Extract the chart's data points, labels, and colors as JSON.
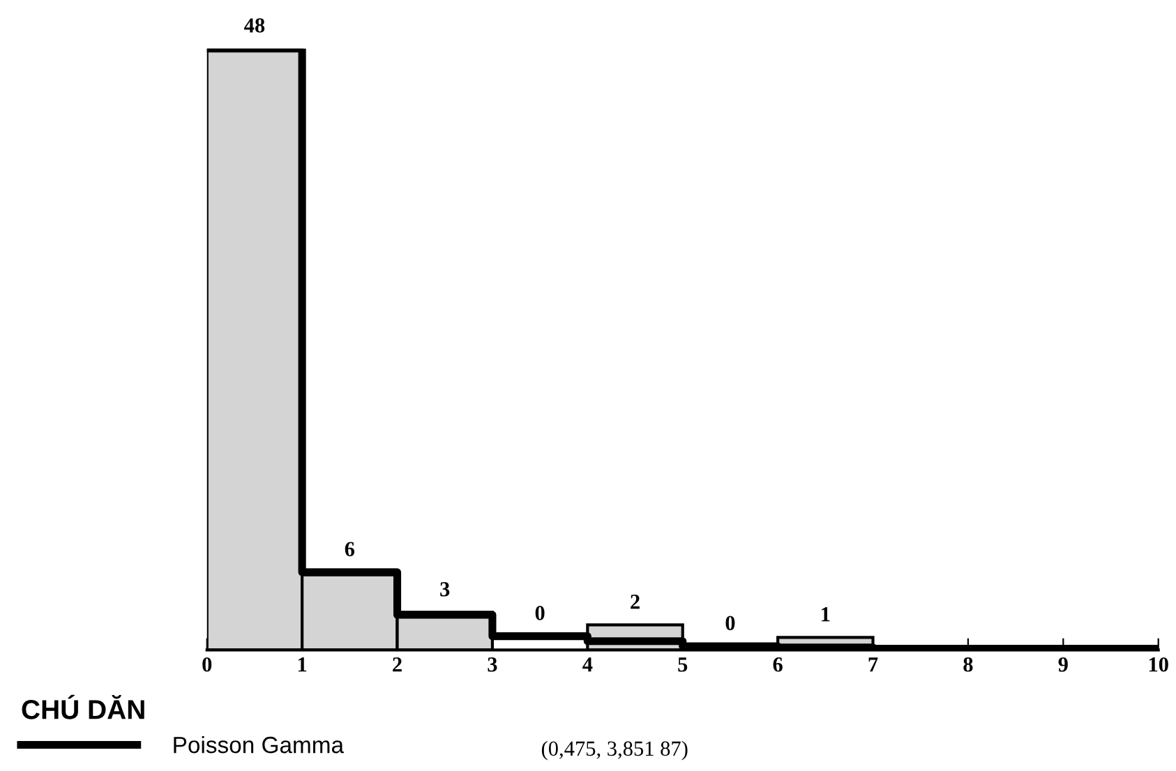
{
  "chart_data": {
    "type": "histogram",
    "bins": [
      0,
      1,
      2,
      3,
      4,
      5,
      6,
      7,
      8,
      9,
      10
    ],
    "values": [
      48,
      6,
      3,
      0,
      2,
      0,
      1,
      0,
      0,
      0
    ],
    "value_labels": [
      "48",
      "6",
      "3",
      "0",
      "2",
      "0",
      "1",
      null,
      null,
      null
    ],
    "color": "#d4d4d4",
    "series": [
      {
        "type": "step",
        "name": "Poisson Gamma",
        "color": "#000000",
        "x": [
          0,
          1,
          2,
          3,
          4,
          5,
          6,
          7,
          8,
          9,
          10
        ],
        "values": [
          48,
          6.2,
          2.8,
          1.1,
          0.7,
          0.3,
          0.2,
          0.1,
          0.1,
          0.1,
          0.1
        ]
      }
    ],
    "xlim": [
      0,
      10
    ],
    "xticks": [
      0,
      1,
      2,
      3,
      4,
      5,
      6,
      7,
      8,
      9,
      10
    ],
    "tick_labels": "x",
    "grid": false,
    "legend": "bottom left",
    "legend_title": "CHÚ DĂN",
    "annotations": [
      "(0,475, 3,851 87)"
    ]
  }
}
